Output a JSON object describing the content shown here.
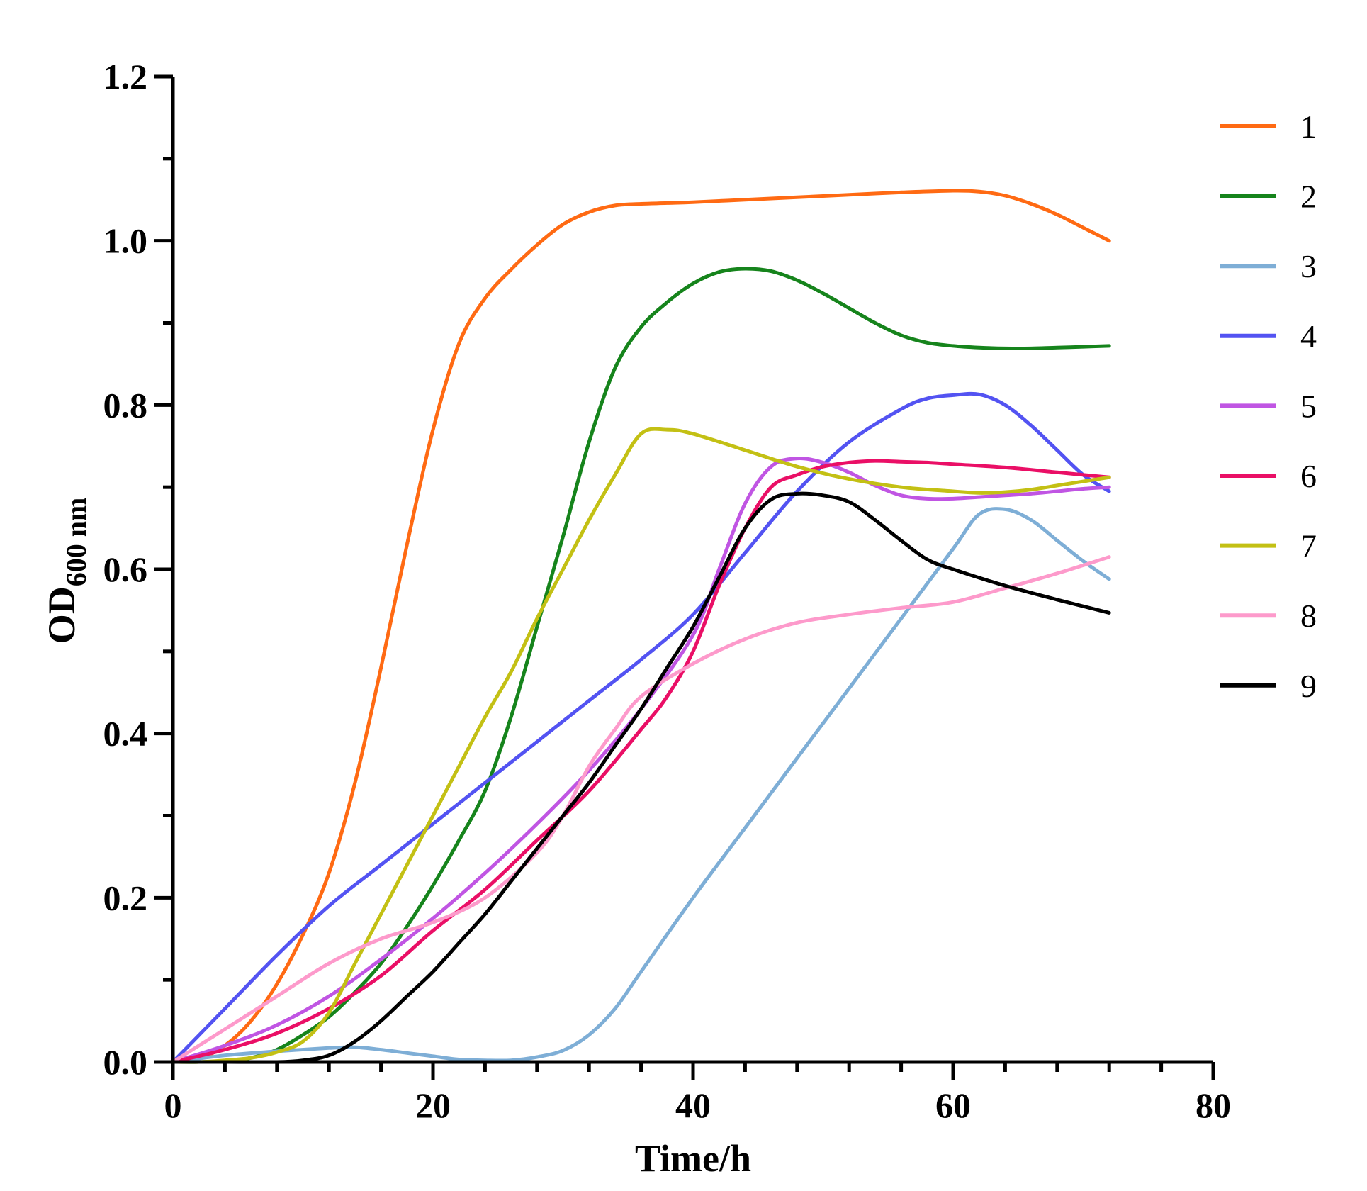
{
  "chart_data": {
    "type": "line",
    "title": "",
    "xlabel": "Time/h",
    "ylabel_main": "OD",
    "ylabel_sub": "600 nm",
    "xlim": [
      0,
      80
    ],
    "ylim": [
      0,
      1.2
    ],
    "x_ticks": [
      0,
      20,
      40,
      60,
      80
    ],
    "x_tick_labels": [
      "0",
      "20",
      "40",
      "60",
      "80"
    ],
    "y_ticks": [
      0,
      0.2,
      0.4,
      0.6,
      0.8,
      1.0,
      1.2
    ],
    "y_tick_labels": [
      "0.0",
      "0.2",
      "0.4",
      "0.6",
      "0.8",
      "1.0",
      "1.2"
    ],
    "grid": false,
    "legend_position": "right",
    "series": [
      {
        "name": "1",
        "color": "#ff6a13",
        "x": [
          0,
          2,
          4,
          6,
          8,
          10,
          12,
          14,
          16,
          18,
          20,
          22,
          24,
          26,
          28,
          30,
          32,
          34,
          36,
          38,
          40,
          44,
          48,
          52,
          56,
          60,
          62,
          64,
          66,
          68,
          70,
          72
        ],
        "y": [
          0,
          0.004,
          0.02,
          0.05,
          0.095,
          0.155,
          0.23,
          0.34,
          0.48,
          0.63,
          0.77,
          0.875,
          0.93,
          0.965,
          0.995,
          1.02,
          1.035,
          1.043,
          1.045,
          1.046,
          1.047,
          1.05,
          1.053,
          1.056,
          1.059,
          1.061,
          1.06,
          1.055,
          1.045,
          1.032,
          1.016,
          1.0
        ]
      },
      {
        "name": "2",
        "color": "#16841c",
        "x": [
          0,
          2,
          4,
          6,
          8,
          10,
          12,
          14,
          16,
          18,
          20,
          22,
          24,
          26,
          28,
          30,
          32,
          34,
          36,
          38,
          40,
          42,
          44,
          46,
          48,
          50,
          52,
          54,
          56,
          58,
          60,
          62,
          64,
          66,
          68,
          70,
          72
        ],
        "y": [
          0,
          0,
          0.001,
          0.005,
          0.015,
          0.033,
          0.055,
          0.085,
          0.12,
          0.165,
          0.215,
          0.27,
          0.33,
          0.42,
          0.53,
          0.64,
          0.755,
          0.845,
          0.895,
          0.925,
          0.948,
          0.962,
          0.966,
          0.963,
          0.952,
          0.936,
          0.918,
          0.9,
          0.885,
          0.876,
          0.872,
          0.87,
          0.869,
          0.869,
          0.87,
          0.871,
          0.872
        ]
      },
      {
        "name": "3",
        "color": "#7eaed6",
        "x": [
          0,
          4,
          8,
          12,
          14,
          16,
          18,
          20,
          22,
          24,
          26,
          28,
          30,
          32,
          34,
          36,
          40,
          44,
          48,
          52,
          56,
          60,
          62,
          64,
          66,
          68,
          70,
          72
        ],
        "y": [
          0,
          0.008,
          0.013,
          0.017,
          0.018,
          0.015,
          0.011,
          0.007,
          0.003,
          0.002,
          0.002,
          0.006,
          0.014,
          0.033,
          0.065,
          0.11,
          0.2,
          0.285,
          0.37,
          0.455,
          0.54,
          0.625,
          0.667,
          0.673,
          0.66,
          0.635,
          0.61,
          0.588
        ]
      },
      {
        "name": "4",
        "color": "#5353f2",
        "x": [
          0,
          4,
          8,
          12,
          16,
          20,
          24,
          28,
          32,
          36,
          40,
          44,
          48,
          52,
          56,
          58,
          60,
          62,
          64,
          66,
          68,
          70,
          72
        ],
        "y": [
          0,
          0.065,
          0.13,
          0.19,
          0.24,
          0.29,
          0.34,
          0.39,
          0.44,
          0.49,
          0.545,
          0.62,
          0.695,
          0.755,
          0.795,
          0.808,
          0.812,
          0.813,
          0.8,
          0.775,
          0.745,
          0.715,
          0.695
        ]
      },
      {
        "name": "5",
        "color": "#c055e3",
        "x": [
          0,
          4,
          8,
          12,
          16,
          20,
          24,
          28,
          32,
          36,
          40,
          42,
          44,
          46,
          48,
          50,
          52,
          54,
          56,
          58,
          60,
          62,
          64,
          66,
          68,
          70,
          72
        ],
        "y": [
          0,
          0.02,
          0.045,
          0.08,
          0.125,
          0.175,
          0.23,
          0.29,
          0.355,
          0.43,
          0.52,
          0.6,
          0.68,
          0.725,
          0.735,
          0.73,
          0.718,
          0.702,
          0.69,
          0.686,
          0.686,
          0.688,
          0.69,
          0.692,
          0.695,
          0.698,
          0.7
        ]
      },
      {
        "name": "6",
        "color": "#ea0f66",
        "x": [
          0,
          4,
          8,
          12,
          16,
          20,
          24,
          28,
          32,
          36,
          38,
          40,
          42,
          44,
          46,
          48,
          50,
          52,
          54,
          56,
          58,
          60,
          64,
          68,
          72
        ],
        "y": [
          0,
          0.015,
          0.035,
          0.065,
          0.105,
          0.16,
          0.21,
          0.27,
          0.33,
          0.405,
          0.445,
          0.5,
          0.58,
          0.65,
          0.7,
          0.715,
          0.725,
          0.73,
          0.732,
          0.731,
          0.73,
          0.728,
          0.724,
          0.718,
          0.712
        ]
      },
      {
        "name": "7",
        "color": "#c3c014",
        "x": [
          0,
          2,
          4,
          6,
          8,
          10,
          12,
          14,
          16,
          18,
          20,
          22,
          24,
          26,
          28,
          30,
          32,
          34,
          36,
          38,
          40,
          44,
          48,
          52,
          56,
          60,
          62,
          64,
          66,
          68,
          70,
          72
        ],
        "y": [
          0,
          0,
          0.002,
          0.005,
          0.012,
          0.025,
          0.06,
          0.12,
          0.18,
          0.24,
          0.3,
          0.36,
          0.42,
          0.475,
          0.54,
          0.6,
          0.66,
          0.715,
          0.765,
          0.77,
          0.765,
          0.745,
          0.725,
          0.71,
          0.7,
          0.695,
          0.693,
          0.694,
          0.697,
          0.702,
          0.707,
          0.712
        ]
      },
      {
        "name": "8",
        "color": "#fd9acb",
        "x": [
          0,
          4,
          8,
          12,
          16,
          20,
          24,
          28,
          30,
          32,
          34,
          36,
          40,
          44,
          48,
          52,
          56,
          60,
          64,
          68,
          72
        ],
        "y": [
          0,
          0.04,
          0.08,
          0.12,
          0.15,
          0.17,
          0.2,
          0.255,
          0.3,
          0.36,
          0.405,
          0.445,
          0.485,
          0.515,
          0.535,
          0.545,
          0.553,
          0.56,
          0.577,
          0.595,
          0.615
        ]
      },
      {
        "name": "9",
        "color": "#000000",
        "x": [
          0,
          4,
          8,
          10,
          12,
          14,
          16,
          18,
          20,
          22,
          24,
          26,
          28,
          30,
          32,
          34,
          36,
          38,
          40,
          42,
          44,
          46,
          48,
          50,
          52,
          54,
          56,
          58,
          60,
          64,
          68,
          72
        ],
        "y": [
          0,
          0,
          0,
          0.002,
          0.008,
          0.025,
          0.05,
          0.08,
          0.11,
          0.145,
          0.18,
          0.22,
          0.26,
          0.3,
          0.34,
          0.385,
          0.43,
          0.48,
          0.53,
          0.59,
          0.65,
          0.685,
          0.692,
          0.69,
          0.682,
          0.66,
          0.635,
          0.612,
          0.6,
          0.58,
          0.563,
          0.547
        ]
      }
    ]
  }
}
